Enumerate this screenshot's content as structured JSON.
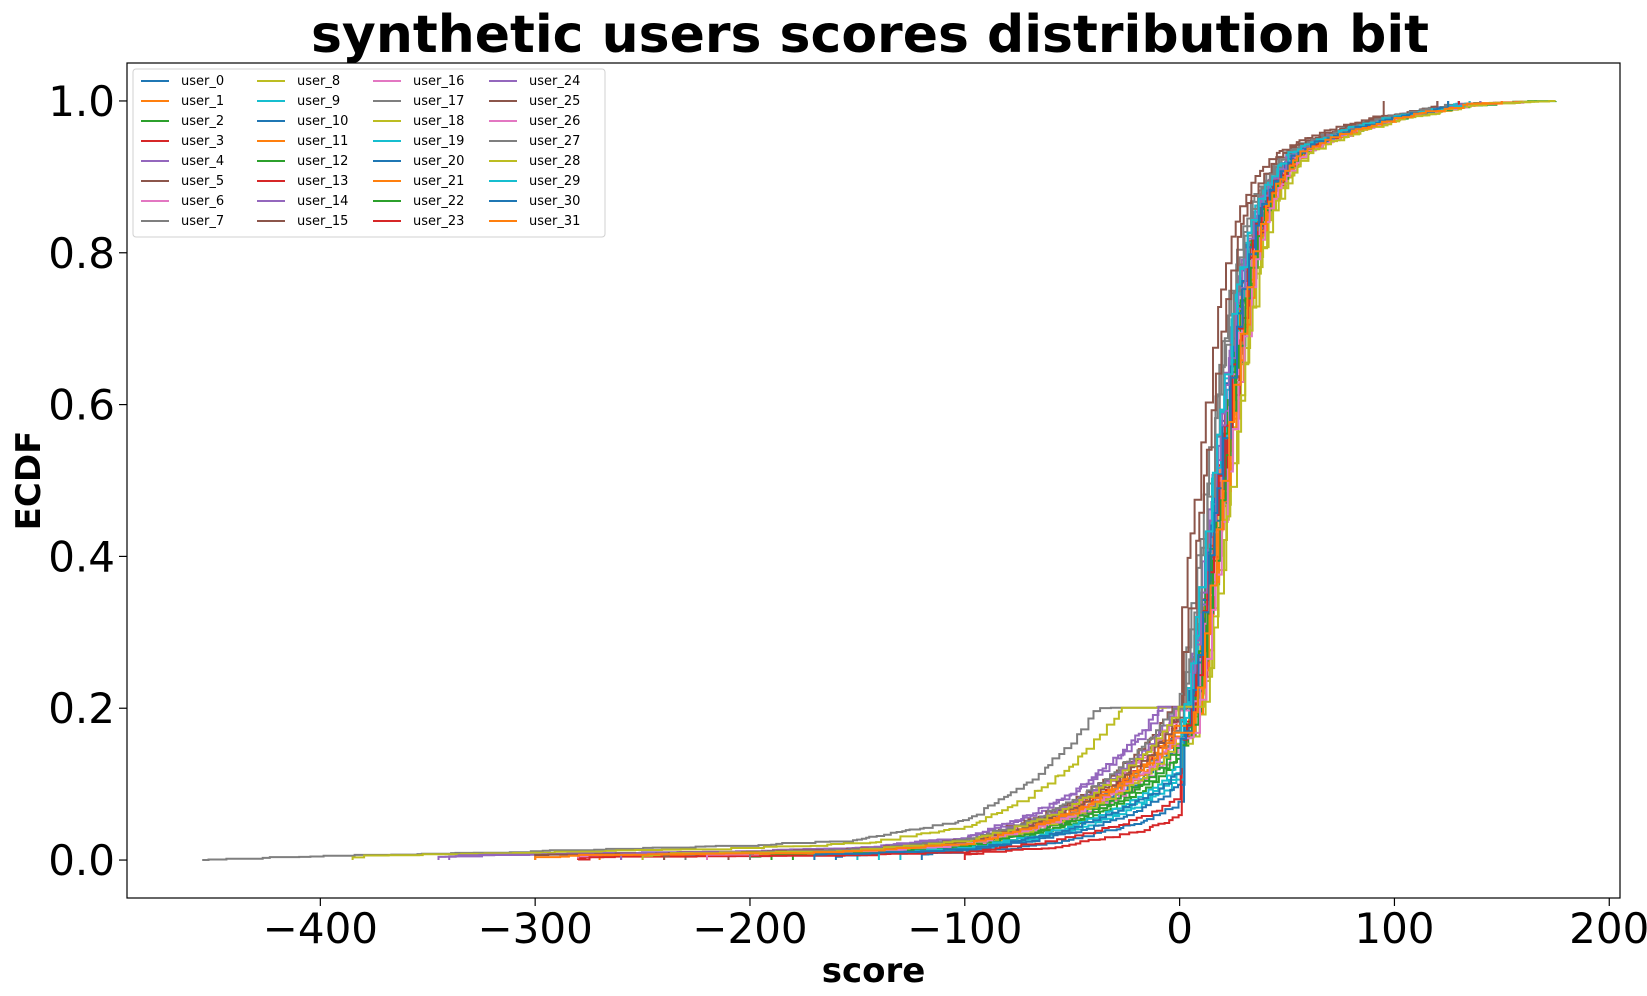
{
  "chart_data": {
    "type": "line",
    "title": "synthetic users scores distribution bit",
    "xlabel": "score",
    "ylabel": "ECDF",
    "xlim": [
      -490,
      205
    ],
    "ylim": [
      -0.05,
      1.05
    ],
    "x_ticks": [
      -400,
      -300,
      -200,
      -100,
      0,
      100,
      200
    ],
    "x_tick_labels": [
      "−400",
      "−300",
      "−200",
      "−100",
      "0",
      "100",
      "200"
    ],
    "y_ticks": [
      0.0,
      0.2,
      0.4,
      0.6,
      0.8,
      1.0
    ],
    "y_tick_labels": [
      "0.0",
      "0.2",
      "0.4",
      "0.6",
      "0.8",
      "1.0"
    ],
    "grid": false,
    "legend": {
      "placement": "top-left",
      "columns": 4
    },
    "profile": {
      "x": [
        -455,
        -300,
        -200,
        -150,
        -100,
        -70,
        -50,
        -30,
        -15,
        -5,
        0,
        5,
        10,
        15,
        20,
        25,
        30,
        35,
        40,
        45,
        50,
        60,
        70,
        80,
        100,
        130,
        175
      ],
      "y": [
        0.0,
        0.004,
        0.007,
        0.01,
        0.02,
        0.04,
        0.06,
        0.09,
        0.12,
        0.15,
        0.17,
        0.25,
        0.38,
        0.5,
        0.62,
        0.73,
        0.81,
        0.86,
        0.89,
        0.91,
        0.93,
        0.945,
        0.955,
        0.965,
        0.98,
        0.995,
        1.0
      ]
    },
    "series": [
      {
        "name": "user_0",
        "color": "#1f77b4",
        "x_start": -230,
        "x_end": 130,
        "tail": 0.95,
        "shift": 1
      },
      {
        "name": "user_1",
        "color": "#ff7f0e",
        "x_start": -260,
        "x_end": 125,
        "tail": 1.0,
        "shift": 3
      },
      {
        "name": "user_2",
        "color": "#2ca02c",
        "x_start": -200,
        "x_end": 175,
        "tail": 0.8,
        "shift": 6
      },
      {
        "name": "user_3",
        "color": "#d62728",
        "x_start": -280,
        "x_end": 130,
        "tail": 1.1,
        "shift": 2
      },
      {
        "name": "user_4",
        "color": "#9467bd",
        "x_start": -340,
        "x_end": 135,
        "tail": 1.45,
        "shift": 0
      },
      {
        "name": "user_5",
        "color": "#8c564b",
        "x_start": -210,
        "x_end": 130,
        "tail": 1.2,
        "shift": 4
      },
      {
        "name": "user_6",
        "color": "#e377c2",
        "x_start": -250,
        "x_end": 150,
        "tail": 0.9,
        "shift": 5
      },
      {
        "name": "user_7",
        "color": "#7f7f7f",
        "x_start": -455,
        "x_end": 135,
        "tail": 2.6,
        "shift": -2
      },
      {
        "name": "user_8",
        "color": "#bcbd22",
        "x_start": -385,
        "x_end": 175,
        "tail": 2.1,
        "shift": 7
      },
      {
        "name": "user_9",
        "color": "#17becf",
        "x_start": -150,
        "x_end": 130,
        "tail": 0.7,
        "shift": 2
      },
      {
        "name": "user_10",
        "color": "#1f77b4",
        "x_start": -120,
        "x_end": 120,
        "tail": 0.45,
        "shift": 4
      },
      {
        "name": "user_11",
        "color": "#ff7f0e",
        "x_start": -240,
        "x_end": 140,
        "tail": 1.0,
        "shift": 6
      },
      {
        "name": "user_12",
        "color": "#2ca02c",
        "x_start": -180,
        "x_end": 140,
        "tail": 0.9,
        "shift": 3
      },
      {
        "name": "user_13",
        "color": "#d62728",
        "x_start": -100,
        "x_end": 130,
        "tail": 0.35,
        "shift": 5
      },
      {
        "name": "user_14",
        "color": "#9467bd",
        "x_start": -345,
        "x_end": 120,
        "tail": 1.5,
        "shift": 1
      },
      {
        "name": "user_15",
        "color": "#8c564b",
        "x_start": -300,
        "x_end": 95,
        "tail": 1.3,
        "shift": -7
      },
      {
        "name": "user_16",
        "color": "#e377c2",
        "x_start": -280,
        "x_end": 150,
        "tail": 1.2,
        "shift": 4
      },
      {
        "name": "user_17",
        "color": "#7f7f7f",
        "x_start": -230,
        "x_end": 120,
        "tail": 1.05,
        "shift": -3
      },
      {
        "name": "user_18",
        "color": "#bcbd22",
        "x_start": -220,
        "x_end": 160,
        "tail": 0.95,
        "shift": 8
      },
      {
        "name": "user_19",
        "color": "#17becf",
        "x_start": -130,
        "x_end": 130,
        "tail": 0.65,
        "shift": 0
      },
      {
        "name": "user_20",
        "color": "#1f77b4",
        "x_start": -160,
        "x_end": 130,
        "tail": 0.6,
        "shift": 2
      },
      {
        "name": "user_21",
        "color": "#ff7f0e",
        "x_start": -270,
        "x_end": 160,
        "tail": 1.1,
        "shift": 6
      },
      {
        "name": "user_22",
        "color": "#2ca02c",
        "x_start": -190,
        "x_end": 140,
        "tail": 0.85,
        "shift": 5
      },
      {
        "name": "user_23",
        "color": "#d62728",
        "x_start": -280,
        "x_end": 130,
        "tail": 0.5,
        "shift": 3
      },
      {
        "name": "user_24",
        "color": "#9467bd",
        "x_start": -260,
        "x_end": 140,
        "tail": 1.25,
        "shift": 1
      },
      {
        "name": "user_25",
        "color": "#8c564b",
        "x_start": -240,
        "x_end": 120,
        "tail": 1.15,
        "shift": -4
      },
      {
        "name": "user_26",
        "color": "#e377c2",
        "x_start": -220,
        "x_end": 160,
        "tail": 1.0,
        "shift": 7
      },
      {
        "name": "user_27",
        "color": "#7f7f7f",
        "x_start": -200,
        "x_end": 125,
        "tail": 1.3,
        "shift": -1
      },
      {
        "name": "user_28",
        "color": "#bcbd22",
        "x_start": -250,
        "x_end": 165,
        "tail": 1.2,
        "shift": 9
      },
      {
        "name": "user_29",
        "color": "#17becf",
        "x_start": -140,
        "x_end": 135,
        "tail": 0.75,
        "shift": 0
      },
      {
        "name": "user_30",
        "color": "#1f77b4",
        "x_start": -170,
        "x_end": 125,
        "tail": 0.7,
        "shift": 3
      },
      {
        "name": "user_31",
        "color": "#ff7f0e",
        "x_start": -300,
        "x_end": 150,
        "tail": 1.05,
        "shift": 5
      }
    ]
  }
}
